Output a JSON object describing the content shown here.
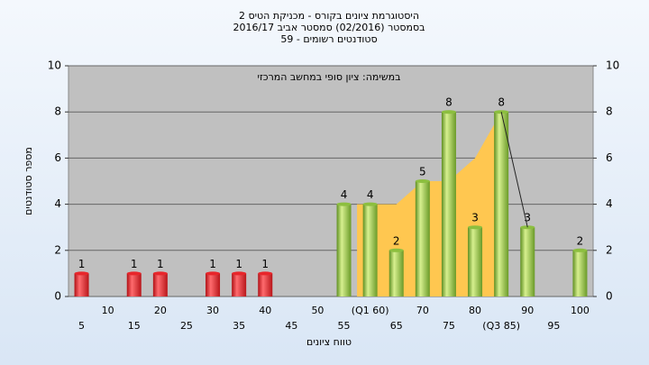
{
  "chart_data": {
    "type": "bar",
    "title_lines": [
      "היסטוגרמת ציונים בקורס - מכניקת הטיס 2",
      "בסמסטר  (02/2016)  סמסטר אביב 2016/17",
      "סטודנטים רשומים - 59"
    ],
    "annotation": "במשימה: ציון סופי במחשב המרכזי",
    "x_label": "טווח ציונים",
    "y_label": "מספר סטודנטים",
    "categories": [
      "5",
      "10",
      "15",
      "20",
      "25",
      "30",
      "35",
      "40",
      "45",
      "50",
      "55",
      "(Q1 60)",
      "65",
      "70",
      "75",
      "80",
      "(Q3 85)",
      "90",
      "95",
      "100"
    ],
    "series": [
      {
        "color": "#e8262b",
        "values": [
          1,
          null,
          1,
          1,
          null,
          1,
          1,
          1,
          null,
          null,
          null,
          null,
          null,
          null,
          null,
          null,
          null,
          null,
          null,
          null
        ]
      },
      {
        "color": "#8cbf3f",
        "values": [
          null,
          null,
          null,
          null,
          null,
          null,
          null,
          null,
          null,
          null,
          4,
          4,
          2,
          5,
          8,
          3,
          8,
          3,
          null,
          2
        ]
      }
    ],
    "overlays": [
      {
        "type": "area",
        "color": "#ffc750",
        "values": [
          null,
          null,
          null,
          null,
          null,
          null,
          null,
          null,
          null,
          null,
          null,
          4,
          4,
          5,
          5,
          6,
          8,
          null,
          null,
          null
        ]
      },
      {
        "type": "line",
        "color": "#222222",
        "values": [
          null,
          null,
          null,
          null,
          null,
          null,
          null,
          null,
          null,
          null,
          null,
          null,
          null,
          null,
          null,
          null,
          8,
          3,
          null,
          null
        ]
      }
    ],
    "ylim": [
      0,
      10
    ],
    "yticks": [
      0,
      2,
      4,
      6,
      8,
      10
    ],
    "y2lim": [
      0,
      10
    ],
    "y2ticks": [
      0,
      2,
      4,
      6,
      8,
      10
    ],
    "grid": true
  }
}
